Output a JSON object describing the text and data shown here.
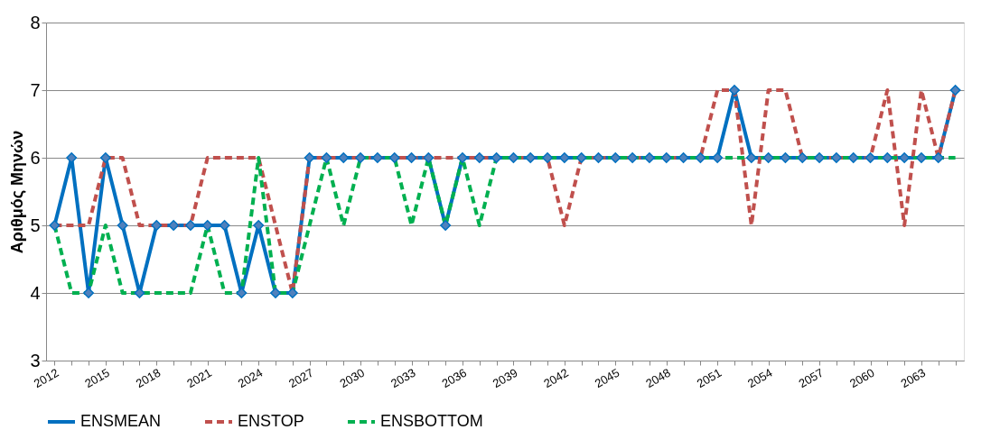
{
  "chart_data": {
    "type": "line",
    "ylabel": "Αριθμός Μηνών",
    "categories": [
      "2012",
      null,
      null,
      "2015",
      null,
      null,
      "2018",
      null,
      null,
      "2021",
      null,
      null,
      "2024",
      null,
      null,
      "2027",
      null,
      null,
      "2030",
      null,
      null,
      "2033",
      null,
      null,
      "2036",
      null,
      null,
      "2039",
      null,
      null,
      "2042",
      null,
      null,
      "2045",
      null,
      null,
      "2048",
      null,
      null,
      "2051",
      null,
      null,
      "2054",
      null,
      null,
      "2057",
      null,
      null,
      "2060",
      null,
      null,
      "2063",
      null,
      null
    ],
    "series": [
      {
        "name": "ENSMEAN",
        "color": "#0070c0",
        "marker": "diamond",
        "line_style": "solid",
        "values": [
          5,
          6,
          4,
          6,
          5,
          4,
          5,
          5,
          5,
          5,
          5,
          4,
          5,
          4,
          4,
          6,
          6,
          6,
          6,
          6,
          6,
          6,
          6,
          5,
          6,
          6,
          6,
          6,
          6,
          6,
          6,
          6,
          6,
          6,
          6,
          6,
          6,
          6,
          6,
          6,
          7,
          6,
          6,
          6,
          6,
          6,
          6,
          6,
          6,
          6,
          6,
          6,
          6,
          7
        ]
      },
      {
        "name": "ENSTOP",
        "color": "#c0504d",
        "marker": "none",
        "line_style": "dashed",
        "values": [
          5,
          5,
          5,
          6,
          6,
          5,
          5,
          5,
          5,
          6,
          6,
          6,
          6,
          5,
          4,
          6,
          6,
          6,
          6,
          6,
          6,
          6,
          6,
          6,
          6,
          6,
          6,
          6,
          6,
          6,
          5,
          6,
          6,
          6,
          6,
          6,
          6,
          6,
          6,
          7,
          7,
          5,
          7,
          7,
          6,
          6,
          6,
          6,
          6,
          7,
          5,
          7,
          6,
          7
        ]
      },
      {
        "name": "ENSBOTTOM",
        "color": "#00b050",
        "marker": "none",
        "line_style": "dashed",
        "values": [
          5,
          4,
          4,
          5,
          4,
          4,
          4,
          4,
          4,
          5,
          4,
          4,
          6,
          4,
          4,
          5,
          6,
          5,
          6,
          6,
          6,
          5,
          6,
          5,
          6,
          5,
          6,
          6,
          6,
          6,
          6,
          6,
          6,
          6,
          6,
          6,
          6,
          6,
          6,
          6,
          6,
          6,
          6,
          6,
          6,
          6,
          6,
          6,
          6,
          6,
          6,
          6,
          6,
          6
        ]
      }
    ],
    "ylim": [
      3,
      8
    ],
    "yticks": [
      3,
      4,
      5,
      6,
      7,
      8
    ],
    "grid": "y",
    "legend": "bottom"
  }
}
